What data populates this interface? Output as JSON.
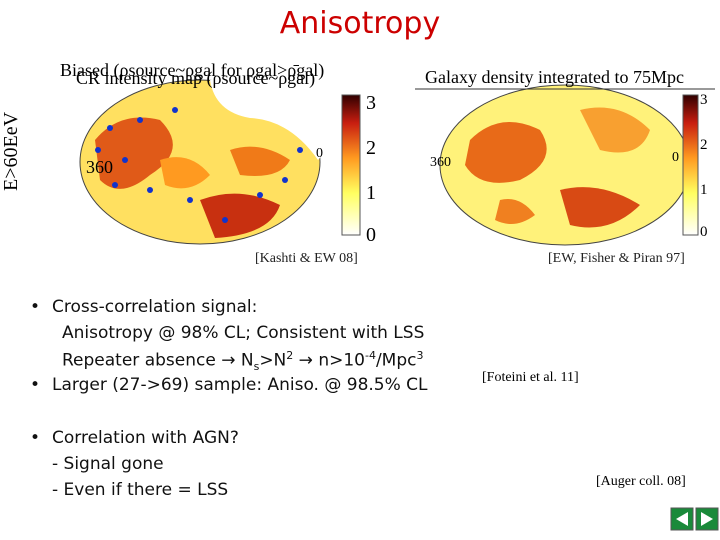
{
  "title": "Anisotropy",
  "left_panel": {
    "heading_biased": "Biased (ρsource~ρgal for ρgal>ρ̄gal)",
    "heading_intensity": "CR intensity map (ρsource~ρgal)",
    "axis_label": "E>60EeV",
    "lon_left": "360",
    "lon_right": "0",
    "colorbar_labels": [
      "3",
      "2",
      "1",
      "0"
    ],
    "reference": "[Kashti & EW 08]"
  },
  "right_panel": {
    "heading": "Galaxy density integrated to 75Mpc",
    "lon_left": "360",
    "lon_right": "0",
    "colorbar_labels": [
      "3",
      "2",
      "1",
      "0"
    ],
    "reference": "[EW, Fisher & Piran 97]"
  },
  "bullets": [
    {
      "text": "Cross-correlation signal:",
      "sublines": [
        [
          "Anisotropy @ 98% CL; Consistent with LSS"
        ],
        [
          "Repeater absence → N",
          "s",
          ">N",
          "2",
          " → n>10",
          "-4",
          "/Mpc",
          "3"
        ]
      ]
    },
    {
      "text": "Larger (27->69) sample: Aniso. @ 98.5% CL",
      "sublines": []
    },
    {
      "text": "Correlation with AGN?",
      "sublines": [
        [
          "- Signal gone"
        ],
        [
          "- Even if there = LSS"
        ]
      ]
    }
  ],
  "references": {
    "foteini": "[Foteini et al. 11]",
    "auger": "[Auger coll. 08]"
  }
}
